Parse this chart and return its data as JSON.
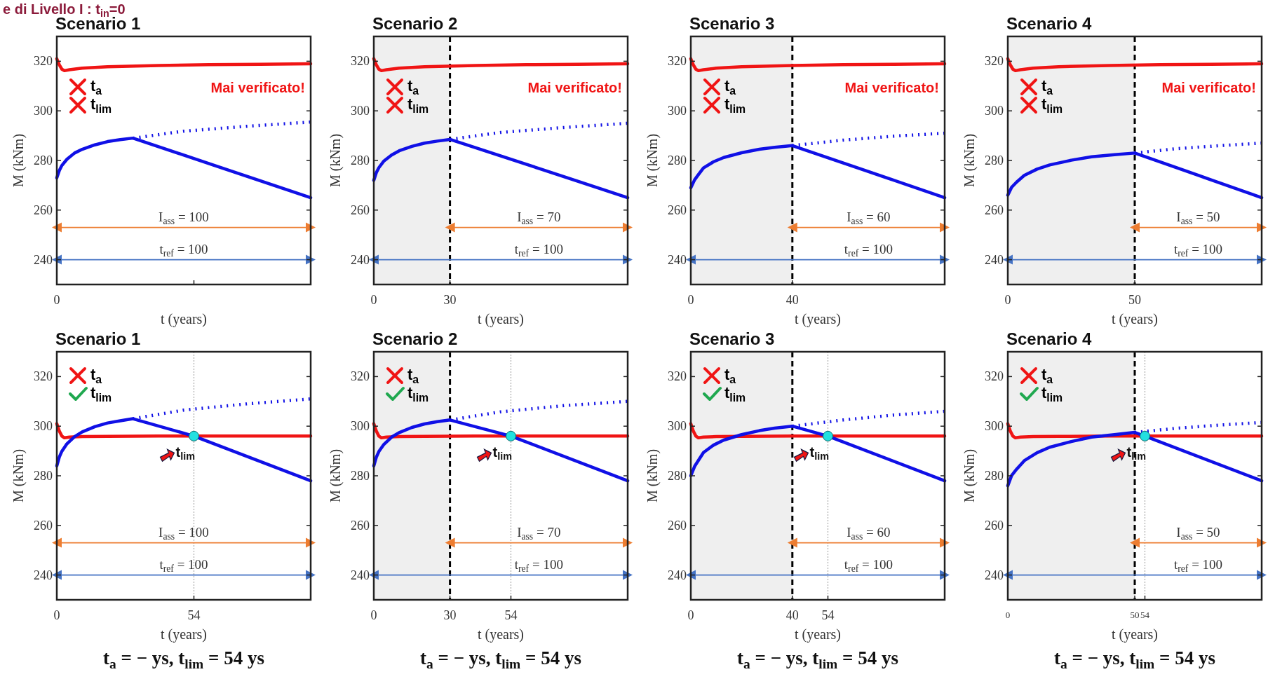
{
  "chart_data": [
    {
      "type": "line",
      "title": "Scenario 1",
      "xlabel": "t (years)",
      "ylabel": "M (kNm)",
      "xlim": [
        0,
        100
      ],
      "ylim": [
        230,
        330
      ],
      "xticks": [
        0,
        54
      ],
      "tick_labels": "y",
      "yticks": [
        240,
        260,
        280,
        300,
        320
      ],
      "series": [
        {
          "color": "#f01414",
          "x": [
            0,
            1,
            2,
            3,
            5,
            10,
            20,
            40,
            60,
            80,
            100
          ],
          "values": [
            321,
            318.5,
            316.8,
            316.2,
            316.6,
            317.2,
            317.8,
            318.3,
            318.6,
            318.8,
            319
          ]
        },
        {
          "color": "#1010e6",
          "x": [
            0,
            1,
            2,
            4,
            7,
            10,
            15,
            20,
            25,
            30,
            65,
            100
          ],
          "values": [
            273,
            276,
            278,
            280.5,
            283,
            284.5,
            286.3,
            287.6,
            288.4,
            289,
            277,
            265
          ]
        },
        {
          "color": "#1010e6",
          "line_style": "dotted",
          "x": [
            30,
            50,
            75,
            100
          ],
          "values": [
            289,
            291.8,
            293.8,
            295.5
          ]
        },
        {
          "color": "#ed7d31",
          "marker": "triangle",
          "x": [
            0,
            100
          ],
          "values": [
            253,
            253
          ]
        },
        {
          "color": "#4472c4",
          "marker": "triangle",
          "x": [
            0,
            100
          ],
          "values": [
            240,
            240
          ]
        }
      ],
      "annotations": [
        "t$_{a}$",
        "t$_{lim}$",
        "Mai verificato!",
        "e di Livello I : t$_{in}$=0",
        "0",
        {
          "text": "I$_{ass}$ = 100",
          "x": 50,
          "y": 253
        },
        {
          "text": "t$_{ref}$ = 100",
          "x": 50,
          "y": 240
        }
      ]
    },
    {
      "type": "line",
      "title": "Scenario 2",
      "xlabel": "t (years)",
      "ylabel": "M (kNm)",
      "xlim": [
        0,
        100
      ],
      "ylim": [
        230,
        330
      ],
      "xticks": [
        0,
        30
      ],
      "yticks": [
        240,
        260,
        280,
        300,
        320
      ],
      "series": [
        {
          "color": "#f01414",
          "x": [
            0,
            1,
            2,
            3,
            5,
            10,
            20,
            40,
            60,
            80,
            100
          ],
          "values": [
            321,
            318.5,
            316.8,
            316.2,
            316.6,
            317.2,
            317.8,
            318.3,
            318.6,
            318.8,
            319
          ]
        },
        {
          "color": "#1010e6",
          "x": [
            0,
            1,
            2,
            4,
            7,
            10,
            15,
            20,
            25,
            30,
            65,
            100
          ],
          "values": [
            272,
            275.1,
            277.1,
            279.8,
            282.2,
            283.9,
            285.7,
            287,
            287.8,
            288.5,
            276.8,
            265
          ]
        },
        {
          "color": "#1010e6",
          "line_style": "dotted",
          "x": [
            30,
            50,
            75,
            100
          ],
          "values": [
            288.5,
            291.3,
            293.3,
            295
          ]
        },
        {
          "color": "#ed7d31",
          "marker": "triangle",
          "x": [
            30,
            100
          ],
          "values": [
            253,
            253
          ]
        },
        {
          "color": "#4472c4",
          "marker": "triangle",
          "x": [
            0,
            100
          ],
          "values": [
            240,
            240
          ]
        }
      ],
      "ref_lines": [
        {
          "axis": "x",
          "value": 30,
          "color": "#000000",
          "line_style": "dashed"
        }
      ],
      "bands": [
        {
          "axis": "x",
          "from": 0,
          "to": 30,
          "color": "#efefef"
        }
      ],
      "annotations": [
        "t$_{a}$",
        "t$_{lim}$",
        "Mai verificato!",
        {
          "text": "I$_{ass}$ = 70",
          "x": 65,
          "y": 253
        },
        {
          "text": "t$_{ref}$ = 100",
          "x": 65,
          "y": 240
        }
      ]
    },
    {
      "type": "line",
      "title": "Scenario 3",
      "xlabel": "t (years)",
      "ylabel": "M (kNm)",
      "xlim": [
        0,
        100
      ],
      "ylim": [
        230,
        330
      ],
      "xticks": [
        0,
        40
      ],
      "yticks": [
        240,
        260,
        280,
        300,
        320
      ],
      "series": [
        {
          "color": "#f01414",
          "x": [
            0,
            1,
            2,
            3,
            5,
            10,
            20,
            40,
            60,
            80,
            100
          ],
          "values": [
            321,
            318.5,
            316.8,
            316.2,
            316.6,
            317.2,
            317.8,
            318.3,
            318.6,
            318.8,
            319
          ]
        },
        {
          "color": "#1010e6",
          "x": [
            0,
            1.5,
            3,
            5,
            9,
            13,
            20,
            27,
            33,
            40,
            70,
            100
          ],
          "values": [
            269,
            272.2,
            274.3,
            277,
            279.5,
            281.2,
            283.1,
            284.5,
            285.3,
            286,
            275.5,
            265
          ]
        },
        {
          "color": "#1010e6",
          "line_style": "dotted",
          "x": [
            40,
            60,
            80,
            100
          ],
          "values": [
            286,
            288.2,
            289.8,
            291
          ]
        },
        {
          "color": "#ed7d31",
          "marker": "triangle",
          "x": [
            40,
            100
          ],
          "values": [
            253,
            253
          ]
        },
        {
          "color": "#4472c4",
          "marker": "triangle",
          "x": [
            0,
            100
          ],
          "values": [
            240,
            240
          ]
        }
      ],
      "ref_lines": [
        {
          "axis": "x",
          "value": 40,
          "color": "#000000",
          "line_style": "dashed"
        }
      ],
      "bands": [
        {
          "axis": "x",
          "from": 0,
          "to": 40,
          "color": "#efefef"
        }
      ],
      "annotations": [
        "t$_{a}$",
        "t$_{lim}$",
        "Mai verificato!",
        {
          "text": "I$_{ass}$ = 60",
          "x": 70,
          "y": 253
        },
        {
          "text": "t$_{ref}$ = 100",
          "x": 70,
          "y": 240
        }
      ]
    },
    {
      "type": "line",
      "title": "Scenario 4",
      "xlabel": "t (years)",
      "ylabel": "M (kNm)",
      "xlim": [
        0,
        100
      ],
      "ylim": [
        230,
        330
      ],
      "xticks": [
        0,
        50
      ],
      "yticks": [
        240,
        260,
        280,
        300,
        320
      ],
      "series": [
        {
          "color": "#f01414",
          "x": [
            0,
            1,
            2,
            3,
            5,
            10,
            20,
            40,
            60,
            80,
            100
          ],
          "values": [
            321,
            318.5,
            316.8,
            316.2,
            316.6,
            317.2,
            317.8,
            318.3,
            318.6,
            318.8,
            319
          ]
        },
        {
          "color": "#1010e6",
          "x": [
            0,
            1.5,
            3.5,
            6.5,
            11.5,
            16.5,
            25,
            33,
            42,
            50,
            75,
            100
          ],
          "values": [
            266,
            269.2,
            271.3,
            274,
            276.5,
            278.2,
            280.1,
            281.5,
            282.3,
            283,
            274,
            265
          ]
        },
        {
          "color": "#1010e6",
          "line_style": "dotted",
          "x": [
            50,
            67,
            84,
            100
          ],
          "values": [
            283,
            284.8,
            286,
            287
          ]
        },
        {
          "color": "#ed7d31",
          "marker": "triangle",
          "x": [
            50,
            100
          ],
          "values": [
            253,
            253
          ]
        },
        {
          "color": "#4472c4",
          "marker": "triangle",
          "x": [
            0,
            100
          ],
          "values": [
            240,
            240
          ]
        }
      ],
      "ref_lines": [
        {
          "axis": "x",
          "value": 50,
          "color": "#000000",
          "line_style": "dashed"
        }
      ],
      "bands": [
        {
          "axis": "x",
          "from": 0,
          "to": 50,
          "color": "#efefef"
        }
      ],
      "annotations": [
        "t$_{a}$",
        "t$_{lim}$",
        "Mai verificato!",
        {
          "text": "I$_{ass}$ = 50",
          "x": 75,
          "y": 253
        },
        {
          "text": "t$_{ref}$ = 100",
          "x": 75,
          "y": 240
        }
      ]
    },
    {
      "type": "line",
      "title": "Scenario 1",
      "xlabel": "t (years)",
      "ylabel": "M (kNm)",
      "xlim": [
        0,
        100
      ],
      "ylim": [
        230,
        330
      ],
      "xticks": [
        0,
        54
      ],
      "yticks": [
        240,
        260,
        280,
        300,
        320
      ],
      "series": [
        {
          "color": "#f01414",
          "x": [
            0,
            1,
            2,
            3,
            5,
            10,
            20,
            40,
            60,
            80,
            100
          ],
          "values": [
            301,
            298,
            296,
            295.3,
            295.6,
            295.8,
            295.9,
            296,
            296,
            296,
            296
          ]
        },
        {
          "color": "#1010e6",
          "x": [
            0,
            1,
            2,
            4,
            7,
            10,
            15,
            20,
            25,
            30,
            54,
            100
          ],
          "values": [
            284,
            287.6,
            289.9,
            292.9,
            295.8,
            297.7,
            299.8,
            301.3,
            302.2,
            303,
            296,
            278
          ]
        },
        {
          "color": "#1010e6",
          "line_style": "dotted",
          "x": [
            30,
            50,
            75,
            100
          ],
          "values": [
            303,
            306.5,
            309,
            311
          ]
        },
        {
          "color": "#ed7d31",
          "marker": "triangle",
          "x": [
            0,
            100
          ],
          "values": [
            253,
            253
          ]
        },
        {
          "color": "#4472c4",
          "marker": "triangle",
          "x": [
            0,
            100
          ],
          "values": [
            240,
            240
          ]
        },
        {
          "type": "scatter",
          "color": "#22e0e0",
          "marker": "circle",
          "x": [
            54
          ],
          "values": [
            296
          ]
        }
      ],
      "ref_lines": [
        {
          "axis": "x",
          "value": 54,
          "color": "#aaaaaa",
          "line_style": "dotted"
        }
      ],
      "annotations": [
        "t$_{a}$",
        "t$_{lim}$",
        "t$_{a}$ = − ys, t$_{lim}$ = 54 ys",
        {
          "text": "t$_{lim}$",
          "x": 54,
          "y": 296
        },
        {
          "text": "I$_{ass}$ = 100",
          "x": 50,
          "y": 253
        },
        {
          "text": "t$_{ref}$ = 100",
          "x": 50,
          "y": 240
        }
      ]
    },
    {
      "type": "line",
      "title": "Scenario 2",
      "xlabel": "t (years)",
      "ylabel": "M (kNm)",
      "xlim": [
        0,
        100
      ],
      "ylim": [
        230,
        330
      ],
      "xticks": [
        0,
        30,
        54
      ],
      "yticks": [
        240,
        260,
        280,
        300,
        320
      ],
      "series": [
        {
          "color": "#f01414",
          "x": [
            0,
            1,
            2,
            3,
            5,
            10,
            20,
            40,
            60,
            80,
            100
          ],
          "values": [
            301,
            298,
            296,
            295.3,
            295.6,
            295.8,
            295.9,
            296,
            296,
            296,
            296
          ]
        },
        {
          "color": "#1010e6",
          "x": [
            0,
            1,
            2,
            4,
            7,
            10,
            15,
            20,
            25,
            30,
            54,
            100
          ],
          "values": [
            284,
            287.5,
            289.8,
            292.7,
            295.6,
            297.4,
            299.5,
            300.9,
            301.8,
            302.5,
            296,
            278
          ]
        },
        {
          "color": "#1010e6",
          "line_style": "dotted",
          "x": [
            30,
            50,
            75,
            100
          ],
          "values": [
            302.5,
            305.8,
            308.3,
            310
          ]
        },
        {
          "color": "#ed7d31",
          "marker": "triangle",
          "x": [
            30,
            100
          ],
          "values": [
            253,
            253
          ]
        },
        {
          "color": "#4472c4",
          "marker": "triangle",
          "x": [
            0,
            100
          ],
          "values": [
            240,
            240
          ]
        },
        {
          "type": "scatter",
          "color": "#22e0e0",
          "marker": "circle",
          "x": [
            54
          ],
          "values": [
            296
          ]
        }
      ],
      "ref_lines": [
        {
          "axis": "x",
          "value": 30,
          "color": "#000000",
          "line_style": "dashed"
        },
        {
          "axis": "x",
          "value": 54,
          "color": "#aaaaaa",
          "line_style": "dotted"
        }
      ],
      "bands": [
        {
          "axis": "x",
          "from": 0,
          "to": 30,
          "color": "#efefef"
        }
      ],
      "annotations": [
        "t$_{a}$",
        "t$_{lim}$",
        "t$_{a}$ = − ys, t$_{lim}$ = 54 ys",
        {
          "text": "t$_{lim}$",
          "x": 54,
          "y": 296
        },
        {
          "text": "I$_{ass}$ = 70",
          "x": 65,
          "y": 253
        },
        {
          "text": "t$_{ref}$ = 100",
          "x": 65,
          "y": 240
        }
      ]
    },
    {
      "type": "line",
      "title": "Scenario 3",
      "xlabel": "t (years)",
      "ylabel": "M (kNm)",
      "xlim": [
        0,
        100
      ],
      "ylim": [
        230,
        330
      ],
      "xticks": [
        0,
        40,
        54
      ],
      "yticks": [
        240,
        260,
        280,
        300,
        320
      ],
      "series": [
        {
          "color": "#f01414",
          "x": [
            0,
            1,
            2,
            3,
            5,
            10,
            20,
            40,
            60,
            80,
            100
          ],
          "values": [
            301,
            298,
            296,
            295.3,
            295.6,
            295.8,
            295.9,
            296,
            296,
            296,
            296
          ]
        },
        {
          "color": "#1010e6",
          "x": [
            0,
            1.5,
            3,
            5,
            9,
            13,
            20,
            27,
            33,
            40,
            54,
            100
          ],
          "values": [
            280,
            283.8,
            286.2,
            289.4,
            292.4,
            294.4,
            296.6,
            298.2,
            299.2,
            300,
            296,
            278
          ]
        },
        {
          "color": "#1010e6",
          "line_style": "dotted",
          "x": [
            40,
            60,
            80,
            100
          ],
          "values": [
            300,
            302.5,
            304.5,
            306
          ]
        },
        {
          "color": "#ed7d31",
          "marker": "triangle",
          "x": [
            40,
            100
          ],
          "values": [
            253,
            253
          ]
        },
        {
          "color": "#4472c4",
          "marker": "triangle",
          "x": [
            0,
            100
          ],
          "values": [
            240,
            240
          ]
        },
        {
          "type": "scatter",
          "color": "#22e0e0",
          "marker": "circle",
          "x": [
            54
          ],
          "values": [
            296
          ]
        }
      ],
      "ref_lines": [
        {
          "axis": "x",
          "value": 40,
          "color": "#000000",
          "line_style": "dashed"
        },
        {
          "axis": "x",
          "value": 54,
          "color": "#aaaaaa",
          "line_style": "dotted"
        }
      ],
      "bands": [
        {
          "axis": "x",
          "from": 0,
          "to": 40,
          "color": "#efefef"
        }
      ],
      "annotations": [
        "t$_{a}$",
        "t$_{lim}$",
        "t$_{a}$ = − ys, t$_{lim}$ = 54 ys",
        {
          "text": "t$_{lim}$",
          "x": 54,
          "y": 296
        },
        {
          "text": "I$_{ass}$ = 60",
          "x": 70,
          "y": 253
        },
        {
          "text": "t$_{ref}$ = 100",
          "x": 70,
          "y": 240
        }
      ]
    },
    {
      "type": "line",
      "title": "Scenario 4",
      "xlabel": "t (years)",
      "ylabel": "M (kNm)",
      "xlim": [
        0,
        100
      ],
      "ylim": [
        230,
        330
      ],
      "xticks": [
        0,
        50,
        54
      ],
      "yticks": [
        240,
        260,
        280,
        300,
        320
      ],
      "series": [
        {
          "color": "#f01414",
          "x": [
            0,
            1,
            2,
            3,
            5,
            10,
            20,
            40,
            60,
            80,
            100
          ],
          "values": [
            301,
            298,
            296,
            295.3,
            295.6,
            295.8,
            295.9,
            296,
            296,
            296,
            296
          ]
        },
        {
          "color": "#1010e6",
          "x": [
            0,
            1.5,
            3.5,
            6.5,
            11.5,
            16.5,
            25,
            33,
            42,
            50,
            54,
            100
          ],
          "values": [
            276,
            280.1,
            282.7,
            286.1,
            289.3,
            291.5,
            293.8,
            295.6,
            296.6,
            297.5,
            296,
            278
          ]
        },
        {
          "color": "#1010e6",
          "line_style": "dotted",
          "x": [
            50,
            67,
            84,
            100
          ],
          "values": [
            297.5,
            299.2,
            300.5,
            301.5
          ]
        },
        {
          "color": "#ed7d31",
          "marker": "triangle",
          "x": [
            50,
            100
          ],
          "values": [
            253,
            253
          ]
        },
        {
          "color": "#4472c4",
          "marker": "triangle",
          "x": [
            0,
            100
          ],
          "values": [
            240,
            240
          ]
        },
        {
          "type": "scatter",
          "color": "#22e0e0",
          "marker": "circle",
          "x": [
            54
          ],
          "values": [
            296
          ]
        }
      ],
      "ref_lines": [
        {
          "axis": "x",
          "value": 50,
          "color": "#000000",
          "line_style": "dashed"
        },
        {
          "axis": "x",
          "value": 54,
          "color": "#aaaaaa",
          "line_style": "dotted"
        }
      ],
      "bands": [
        {
          "axis": "x",
          "from": 0,
          "to": 50,
          "color": "#efefef"
        }
      ],
      "annotations": [
        "t$_{a}$",
        "t$_{lim}$",
        "t$_{a}$ = − ys, t$_{lim}$ = 54 ys",
        {
          "text": "t$_{lim}$",
          "x": 54,
          "y": 296
        },
        {
          "text": "I$_{ass}$ = 50",
          "x": 75,
          "y": 253
        },
        {
          "text": "t$_{ref}$ = 100",
          "x": 75,
          "y": 240
        }
      ]
    }
  ]
}
